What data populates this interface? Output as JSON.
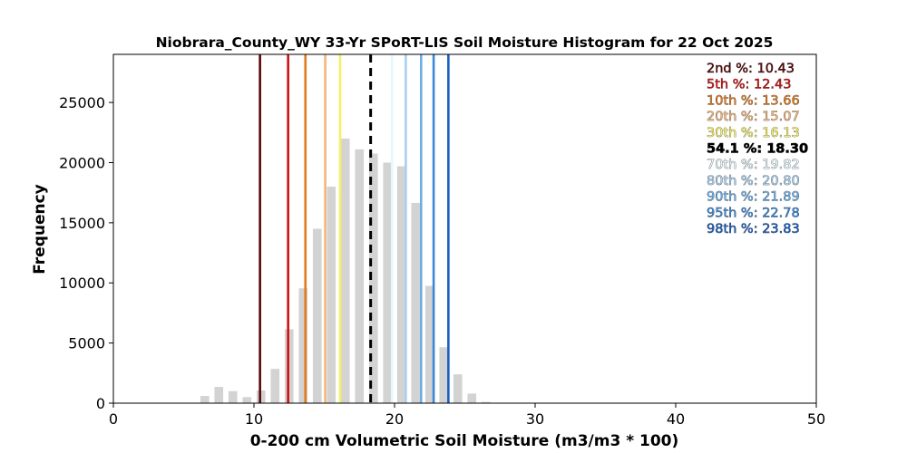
{
  "chart_data": {
    "type": "bar",
    "title": "Niobrara_County_WY 33-Yr SPoRT-LIS Soil Moisture Histogram for 22 Oct 2025",
    "xlabel": "0-200 cm Volumetric Soil Moisture (m3/m3 * 100)",
    "ylabel": "Frequency",
    "xlim": [
      0,
      50
    ],
    "ylim": [
      0,
      29000
    ],
    "xticks": [
      0,
      10,
      20,
      30,
      40,
      50
    ],
    "yticks": [
      0,
      5000,
      10000,
      15000,
      20000,
      25000
    ],
    "grid": false,
    "bar_color": "#d3d3d3",
    "bars": [
      {
        "x": 6.5,
        "value": 600
      },
      {
        "x": 7.5,
        "value": 1350
      },
      {
        "x": 8.5,
        "value": 1000
      },
      {
        "x": 9.5,
        "value": 500
      },
      {
        "x": 10.5,
        "value": 1050
      },
      {
        "x": 11.5,
        "value": 2850
      },
      {
        "x": 12.5,
        "value": 6150
      },
      {
        "x": 13.5,
        "value": 9550
      },
      {
        "x": 14.5,
        "value": 14500
      },
      {
        "x": 15.5,
        "value": 18000
      },
      {
        "x": 16.5,
        "value": 22000
      },
      {
        "x": 17.5,
        "value": 21100
      },
      {
        "x": 18.5,
        "value": 20750
      },
      {
        "x": 19.5,
        "value": 20000
      },
      {
        "x": 20.5,
        "value": 19700
      },
      {
        "x": 21.5,
        "value": 16650
      },
      {
        "x": 22.5,
        "value": 9750
      },
      {
        "x": 23.5,
        "value": 4650
      },
      {
        "x": 24.5,
        "value": 2400
      },
      {
        "x": 25.5,
        "value": 800
      },
      {
        "x": 26.5,
        "value": 100
      }
    ],
    "percentile_lines": [
      {
        "label": "2nd %: 10.43",
        "x": 10.43,
        "color": "#5a0a0a",
        "dashed": false
      },
      {
        "label": "5th %: 12.43",
        "x": 12.43,
        "color": "#d01010",
        "dashed": false
      },
      {
        "label": "10th %: 13.66",
        "x": 13.66,
        "color": "#e07b20",
        "dashed": false
      },
      {
        "label": "20th %: 15.07",
        "x": 15.07,
        "color": "#f4b67a",
        "dashed": false
      },
      {
        "label": "30th %: 16.13",
        "x": 16.13,
        "color": "#f4f060",
        "dashed": false
      },
      {
        "label": "54.1 %: 18.30",
        "x": 18.3,
        "color": "#000000",
        "dashed": true
      },
      {
        "label": "70th %: 19.82",
        "x": 19.82,
        "color": "#e6f7fb",
        "dashed": false
      },
      {
        "label": "80th %: 20.80",
        "x": 20.8,
        "color": "#a8cff0",
        "dashed": false
      },
      {
        "label": "90th %: 21.89",
        "x": 21.89,
        "color": "#6aaee8",
        "dashed": false
      },
      {
        "label": "95th %: 22.78",
        "x": 22.78,
        "color": "#3b88d8",
        "dashed": false
      },
      {
        "label": "98th %: 23.83",
        "x": 23.83,
        "color": "#1a5fc0",
        "dashed": false
      }
    ],
    "legend_placement": "top-right"
  }
}
